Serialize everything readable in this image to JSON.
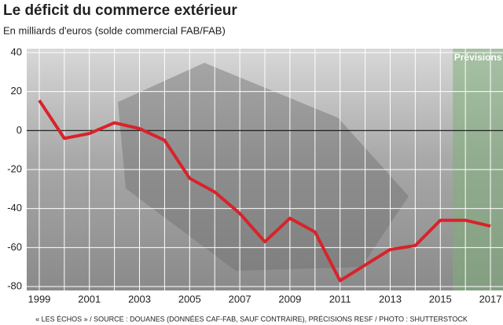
{
  "chart_data": {
    "type": "line",
    "title": "Le déficit du commerce extérieur",
    "subtitle": "En milliards d'euros (solde commercial FAB/FAB)",
    "source": "« LES ÉCHOS » / SOURCE : DOUANES (DONNÉES CAF-FAB, SAUF CONTRAIRE), PRÉCISIONS RESF / PHOTO : SHUTTERSTOCK",
    "x": [
      1999,
      2000,
      2001,
      2002,
      2003,
      2004,
      2005,
      2006,
      2007,
      2008,
      2009,
      2010,
      2011,
      2012,
      2013,
      2014,
      2015,
      2016,
      2017
    ],
    "series": [
      {
        "name": "Solde commercial",
        "color": "#d8232a",
        "values": [
          15.5,
          -4,
          -1.5,
          4,
          1,
          -5,
          -24.5,
          -31.5,
          -42.5,
          -57,
          -45,
          -52,
          -77,
          -69,
          -61,
          -59,
          -46,
          -46,
          -49
        ]
      }
    ],
    "xlim": [
      1998.5,
      2017.5
    ],
    "xticks": [
      1999,
      2001,
      2003,
      2005,
      2007,
      2009,
      2011,
      2013,
      2015,
      2017
    ],
    "ylim": [
      -82,
      42
    ],
    "yticks": [
      40,
      20,
      0,
      -20,
      -40,
      -60,
      -80
    ],
    "grid": true,
    "forecast": {
      "label": "Prévisions",
      "from": 2015.5,
      "color": "#7fae7a"
    }
  }
}
